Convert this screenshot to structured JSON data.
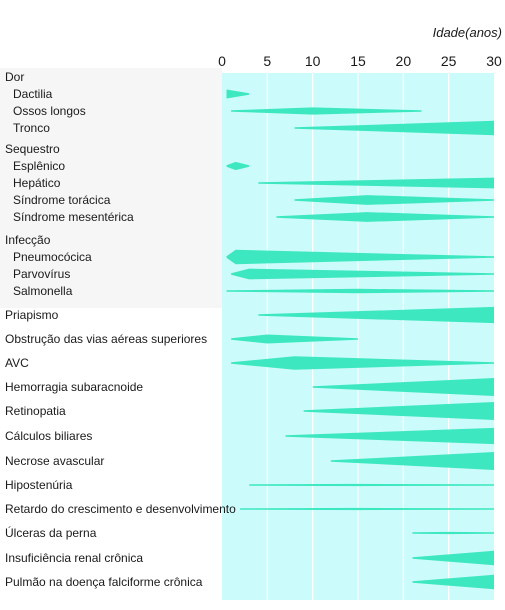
{
  "chart_data": {
    "type": "range-bar",
    "axis_title": "Idade(anos)",
    "x_ticks": [
      0,
      5,
      10,
      15,
      20,
      25,
      30
    ],
    "xlim": [
      0,
      30
    ],
    "colors": {
      "mark": "#3de8c0",
      "panel": "#ccfbfb",
      "grid": "#ffffff"
    },
    "groups": [
      {
        "title": "Dor",
        "items": [
          {
            "label": "Dactilia",
            "start": 0.5,
            "end": 3,
            "peak": 0.5,
            "max_width": 0.5
          },
          {
            "label": "Ossos longos",
            "start": 1,
            "end": 22,
            "peak": 10,
            "max_width": 0.4
          },
          {
            "label": "Tronco",
            "start": 8,
            "end": 30,
            "peak": 30,
            "max_width": 0.8
          }
        ]
      },
      {
        "title": "Sequestro",
        "items": [
          {
            "label": "Esplênico",
            "start": 0.5,
            "end": 3,
            "peak": 1.5,
            "max_width": 0.45
          },
          {
            "label": "Hepático",
            "start": 4,
            "end": 30,
            "peak": 30,
            "max_width": 0.6
          },
          {
            "label": "Síndrome torácica",
            "start": 8,
            "end": 30,
            "peak": 16,
            "max_width": 0.55
          },
          {
            "label": "Síndrome mesentérica",
            "start": 6,
            "end": 30,
            "peak": 16,
            "max_width": 0.55
          }
        ]
      },
      {
        "title": "Infecção",
        "items": [
          {
            "label": "Pneumocócica",
            "start": 0.5,
            "end": 30,
            "peak": 1.5,
            "max_width": 0.8
          },
          {
            "label": "Parvovírus",
            "start": 1,
            "end": 30,
            "peak": 3,
            "max_width": 0.6
          },
          {
            "label": "Salmonella",
            "start": 0.5,
            "end": 30,
            "peak": 15,
            "max_width": 0.25
          }
        ]
      }
    ],
    "items": [
      {
        "label": "Priapismo",
        "start": 4,
        "end": 30,
        "peak": 30,
        "max_width": 0.9
      },
      {
        "label": "Obstrução das vias aéreas superiores",
        "start": 1,
        "end": 15,
        "peak": 5,
        "max_width": 0.5
      },
      {
        "label": "AVC",
        "start": 1,
        "end": 30,
        "peak": 8,
        "max_width": 0.75
      },
      {
        "label": "Hemorragia subaracnoide",
        "start": 10,
        "end": 30,
        "peak": 30,
        "max_width": 1.0
      },
      {
        "label": "Retinopatia",
        "start": 9,
        "end": 30,
        "peak": 30,
        "max_width": 1.0
      },
      {
        "label": "Cálculos biliares",
        "start": 7,
        "end": 30,
        "peak": 30,
        "max_width": 0.9
      },
      {
        "label": "Necrose avascular",
        "start": 12,
        "end": 30,
        "peak": 30,
        "max_width": 1.0
      },
      {
        "label": "Hipostenúria",
        "start": 3,
        "end": 30,
        "peak": 15,
        "max_width": 0.12
      },
      {
        "label": "Retardo do crescimento e desenvolvimento",
        "start": 2,
        "end": 30,
        "peak": 15,
        "max_width": 0.12
      },
      {
        "label": "Úlceras da perna",
        "start": 21,
        "end": 30,
        "peak": 25,
        "max_width": 0.12
      },
      {
        "label": "Insuficiência renal crônica",
        "start": 21,
        "end": 30,
        "peak": 30,
        "max_width": 0.8
      },
      {
        "label": "Pulmão na doença falciforme crônica",
        "start": 21,
        "end": 30,
        "peak": 30,
        "max_width": 0.8
      }
    ]
  }
}
